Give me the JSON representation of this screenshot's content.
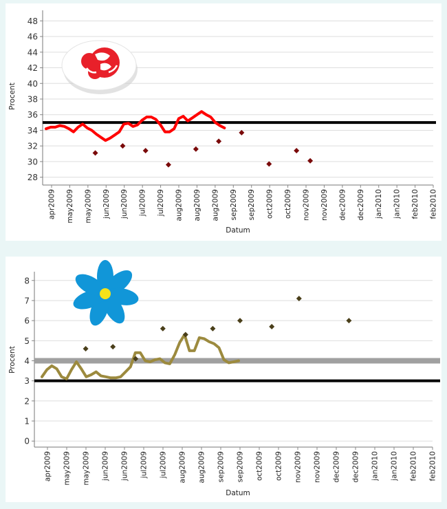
{
  "chart_data": [
    {
      "type": "line",
      "ylabel": "Procent",
      "xlabel": "Datum",
      "ylim": [
        27,
        49
      ],
      "yticks": [
        28,
        30,
        32,
        34,
        36,
        38,
        40,
        42,
        44,
        46,
        48
      ],
      "grid": true,
      "categories": [
        "apr2009",
        "may2009",
        "may2009",
        "jun2009",
        "jun2009",
        "jul2009",
        "jul2009",
        "aug2009",
        "aug2009",
        "aug2009",
        "sep2009",
        "sep2009",
        "oct2009",
        "oct2009",
        "nov2009",
        "nov2009",
        "dec2009",
        "dec2009",
        "jan2010",
        "jan2010",
        "feb2010",
        "feb2010"
      ],
      "reference_lines": [
        {
          "value": 35,
          "color": "#000000"
        }
      ],
      "line": {
        "color": "#ff0000",
        "x": [
          0,
          0.5,
          1,
          1.5,
          2,
          2.5,
          3,
          3.5,
          4,
          4.5,
          5,
          5.5,
          6,
          6.5,
          7,
          7.5,
          8,
          8.5,
          9,
          9.5,
          10,
          10.5,
          11,
          11.5,
          12,
          12.5,
          13,
          13.5,
          14,
          14.5,
          15,
          15.5,
          16,
          16.5,
          17,
          17.5,
          18,
          18.5,
          19,
          19.5,
          20,
          20.5,
          21
        ],
        "y": [
          34.2,
          34.4,
          34.4,
          34.6,
          34.5,
          34.2,
          33.8,
          34.4,
          34.8,
          34.3,
          34.0,
          33.5,
          33.1,
          32.7,
          33.0,
          33.4,
          33.8,
          34.8,
          34.9,
          34.5,
          34.7,
          35.3,
          35.7,
          35.7,
          35.4,
          34.7,
          33.8,
          33.8,
          34.2,
          35.5,
          35.8,
          35.2,
          35.6,
          36.0,
          36.4,
          36.0,
          35.7,
          35.0,
          34.6,
          34.3,
          null,
          null,
          null
        ]
      },
      "points": {
        "color": "#7a0a0a",
        "x": [
          3.5,
          6.5,
          9,
          11.5,
          14.5,
          17,
          19.5,
          22.5,
          25.5,
          27,
          31.5
        ],
        "y": [
          31.1,
          32.0,
          31.4,
          29.6,
          31.6,
          32.6,
          33.7,
          29.7,
          31.4,
          30.1,
          null
        ]
      }
    },
    {
      "type": "line",
      "ylabel": "Procent",
      "xlabel": "Datum",
      "ylim": [
        -0.3,
        8.3
      ],
      "yticks": [
        0,
        1,
        2,
        3,
        4,
        5,
        6,
        7,
        8
      ],
      "grid": true,
      "categories": [
        "apr2009",
        "may2009",
        "may2009",
        "jun2009",
        "jun2009",
        "jul2009",
        "jul2009",
        "aug2009",
        "aug2009",
        "sep2009",
        "sep2009",
        "oct2009",
        "oct2009",
        "nov2009",
        "nov2009",
        "dec2009",
        "dec2009",
        "jan2010",
        "jan2010",
        "feb2010",
        "feb2010"
      ],
      "reference_lines": [
        {
          "value": 3,
          "color": "#000000"
        },
        {
          "value": 4,
          "color": "#a0a0a0"
        }
      ],
      "line": {
        "color": "#9c8a3e",
        "x": [
          0,
          0.5,
          1,
          1.5,
          2,
          2.5,
          3,
          3.5,
          4,
          4.5,
          5,
          5.5,
          6,
          6.5,
          7,
          7.5,
          8,
          8.5,
          9,
          9.5,
          10,
          10.5,
          11,
          11.5,
          12,
          12.5,
          13,
          13.5,
          14,
          14.5,
          15,
          15.5,
          16,
          16.5,
          17,
          17.5,
          18,
          18.5,
          19,
          19.5,
          20
        ],
        "y": [
          3.2,
          3.55,
          3.75,
          3.6,
          3.2,
          3.1,
          3.55,
          3.95,
          3.6,
          3.2,
          3.3,
          3.45,
          3.25,
          3.2,
          3.15,
          3.15,
          3.2,
          3.45,
          3.7,
          4.4,
          4.4,
          4.0,
          3.95,
          4.05,
          4.1,
          3.9,
          3.85,
          4.3,
          4.9,
          5.3,
          4.5,
          4.5,
          5.15,
          5.1,
          4.95,
          4.85,
          4.65,
          4.05,
          3.9,
          3.95,
          4.0
        ]
      },
      "points": {
        "color": "#4a3f1a",
        "x": [
          3,
          6,
          8.5,
          11.5,
          14,
          17,
          20,
          23.5,
          26.5,
          32
        ],
        "y": [
          4.6,
          4.7,
          4.1,
          5.6,
          5.3,
          5.6,
          6.0,
          5.7,
          7.1,
          6.0
        ]
      }
    }
  ],
  "logos": [
    "social-democrats-rose-logo",
    "sweden-democrats-flower-logo"
  ]
}
